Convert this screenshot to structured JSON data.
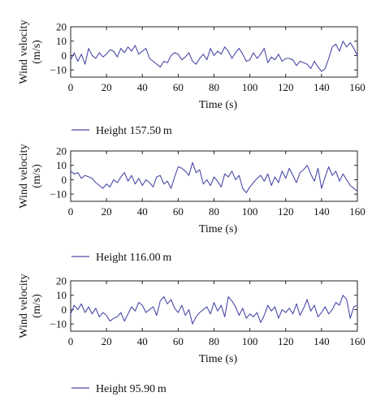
{
  "colors": {
    "series": "#4a4aa8",
    "axis": "#222222",
    "text": "#111111"
  },
  "chart_data": [
    {
      "type": "line",
      "xlabel": "Time (s)",
      "ylabel_line1": "Wind velocity",
      "ylabel_line2": "(m/s)",
      "xlim": [
        0,
        160
      ],
      "ylim": [
        -15,
        20
      ],
      "xticks": [
        0,
        20,
        40,
        60,
        80,
        100,
        120,
        140,
        160
      ],
      "xtick_labels": [
        "0",
        "20",
        "40",
        "60",
        "80",
        "100",
        "120",
        "140",
        "160"
      ],
      "yticks": [
        20,
        10,
        0,
        -10
      ],
      "ytick_labels": [
        "20",
        "10",
        "0",
        "−10"
      ],
      "grid": false,
      "legend_position": "below",
      "series": [
        {
          "name": "Height 157.50 m",
          "x": [
            0,
            2,
            4,
            6,
            8,
            10,
            12,
            14,
            16,
            18,
            20,
            22,
            24,
            26,
            28,
            30,
            32,
            34,
            36,
            38,
            40,
            42,
            44,
            46,
            48,
            50,
            52,
            54,
            56,
            58,
            60,
            62,
            64,
            66,
            68,
            70,
            72,
            74,
            76,
            78,
            80,
            82,
            84,
            86,
            88,
            90,
            92,
            94,
            96,
            98,
            100,
            102,
            104,
            106,
            108,
            110,
            112,
            114,
            116,
            118,
            120,
            122,
            124,
            126,
            128,
            130,
            132,
            134,
            136,
            138,
            140,
            142,
            144,
            146,
            148,
            150,
            152,
            154,
            156,
            158,
            160
          ],
          "y": [
            -3,
            2,
            -4,
            1,
            -6,
            5,
            0,
            -2,
            2,
            -1,
            1,
            4,
            3,
            -1,
            5,
            2,
            6,
            3,
            7,
            1,
            3,
            5,
            -2,
            -4,
            -6,
            -8,
            -4,
            -5,
            0,
            2,
            1,
            -3,
            -1,
            2,
            -4,
            -6,
            -2,
            1,
            -3,
            5,
            0,
            3,
            1,
            6,
            3,
            -2,
            2,
            5,
            1,
            -4,
            -3,
            2,
            -2,
            1,
            5,
            -5,
            -1,
            -3,
            1,
            -4,
            -2,
            -2,
            -3,
            -7,
            -4,
            -5,
            -6,
            -9,
            -4,
            -8,
            -11,
            -9,
            -2,
            6,
            8,
            3,
            10,
            6,
            9,
            5,
            0
          ]
        }
      ]
    },
    {
      "type": "line",
      "xlabel": "Time (s)",
      "ylabel_line1": "Wind velocity",
      "ylabel_line2": "(m/s)",
      "xlim": [
        0,
        160
      ],
      "ylim": [
        -15,
        20
      ],
      "xticks": [
        0,
        20,
        40,
        60,
        80,
        100,
        120,
        140,
        160
      ],
      "xtick_labels": [
        "0",
        "20",
        "40",
        "60",
        "80",
        "100",
        "120",
        "140",
        "160"
      ],
      "yticks": [
        20,
        10,
        0,
        -10
      ],
      "ytick_labels": [
        "20",
        "10",
        "0",
        "−10"
      ],
      "grid": false,
      "legend_position": "below",
      "series": [
        {
          "name": "Height 116.00 m",
          "x": [
            0,
            2,
            4,
            6,
            8,
            10,
            12,
            14,
            16,
            18,
            20,
            22,
            24,
            26,
            28,
            30,
            32,
            34,
            36,
            38,
            40,
            42,
            44,
            46,
            48,
            50,
            52,
            54,
            56,
            58,
            60,
            62,
            64,
            66,
            68,
            70,
            72,
            74,
            76,
            78,
            80,
            82,
            84,
            86,
            88,
            90,
            92,
            94,
            96,
            98,
            100,
            102,
            104,
            106,
            108,
            110,
            112,
            114,
            116,
            118,
            120,
            122,
            124,
            126,
            128,
            130,
            132,
            134,
            136,
            138,
            140,
            142,
            144,
            146,
            148,
            150,
            152,
            154,
            156,
            158,
            160
          ],
          "y": [
            6,
            4,
            5,
            1,
            3,
            2,
            1,
            -2,
            -4,
            -6,
            -3,
            -5,
            0,
            -2,
            2,
            5,
            -1,
            3,
            -3,
            1,
            -4,
            0,
            -2,
            -5,
            2,
            3,
            -3,
            -1,
            -6,
            2,
            9,
            8,
            6,
            3,
            12,
            5,
            7,
            -3,
            0,
            -4,
            2,
            -1,
            -5,
            4,
            2,
            6,
            0,
            3,
            -6,
            -9,
            -5,
            -2,
            1,
            3,
            -1,
            4,
            -4,
            2,
            -2,
            6,
            1,
            8,
            3,
            -2,
            5,
            7,
            10,
            4,
            -1,
            8,
            -6,
            2,
            9,
            3,
            6,
            -1,
            4,
            0,
            -4,
            -6,
            -8
          ]
        }
      ]
    },
    {
      "type": "line",
      "xlabel": "Time (s)",
      "ylabel_line1": "Wind velocity",
      "ylabel_line2": "(m/s)",
      "xlim": [
        0,
        160
      ],
      "ylim": [
        -15,
        20
      ],
      "xticks": [
        0,
        20,
        40,
        60,
        80,
        100,
        120,
        140,
        160
      ],
      "xtick_labels": [
        "0",
        "20",
        "40",
        "60",
        "80",
        "100",
        "120",
        "140",
        "160"
      ],
      "yticks": [
        20,
        10,
        0,
        -10
      ],
      "ytick_labels": [
        "20",
        "10",
        "0",
        "−10"
      ],
      "grid": false,
      "legend_position": "below",
      "series": [
        {
          "name": "Height 95.90 m",
          "x": [
            0,
            2,
            4,
            6,
            8,
            10,
            12,
            14,
            16,
            18,
            20,
            22,
            24,
            26,
            28,
            30,
            32,
            34,
            36,
            38,
            40,
            42,
            44,
            46,
            48,
            50,
            52,
            54,
            56,
            58,
            60,
            62,
            64,
            66,
            68,
            70,
            72,
            74,
            76,
            78,
            80,
            82,
            84,
            86,
            88,
            90,
            92,
            94,
            96,
            98,
            100,
            102,
            104,
            106,
            108,
            110,
            112,
            114,
            116,
            118,
            120,
            122,
            124,
            126,
            128,
            130,
            132,
            134,
            136,
            138,
            140,
            142,
            144,
            146,
            148,
            150,
            152,
            154,
            156,
            158,
            160
          ],
          "y": [
            -3,
            3,
            0,
            4,
            -2,
            2,
            -3,
            1,
            -5,
            -2,
            -4,
            -8,
            -6,
            -5,
            -2,
            -8,
            -3,
            2,
            -1,
            5,
            3,
            -2,
            0,
            2,
            -4,
            6,
            9,
            4,
            7,
            1,
            -2,
            3,
            -4,
            0,
            -10,
            -5,
            -2,
            0,
            2,
            -3,
            5,
            -1,
            3,
            -5,
            9,
            6,
            2,
            -4,
            1,
            -6,
            -3,
            -5,
            -2,
            -9,
            -4,
            3,
            -1,
            2,
            -6,
            0,
            -2,
            1,
            -3,
            4,
            -4,
            1,
            7,
            -1,
            3,
            -5,
            -2,
            2,
            -3,
            0,
            5,
            3,
            10,
            7,
            -6,
            2,
            3
          ]
        }
      ]
    }
  ]
}
